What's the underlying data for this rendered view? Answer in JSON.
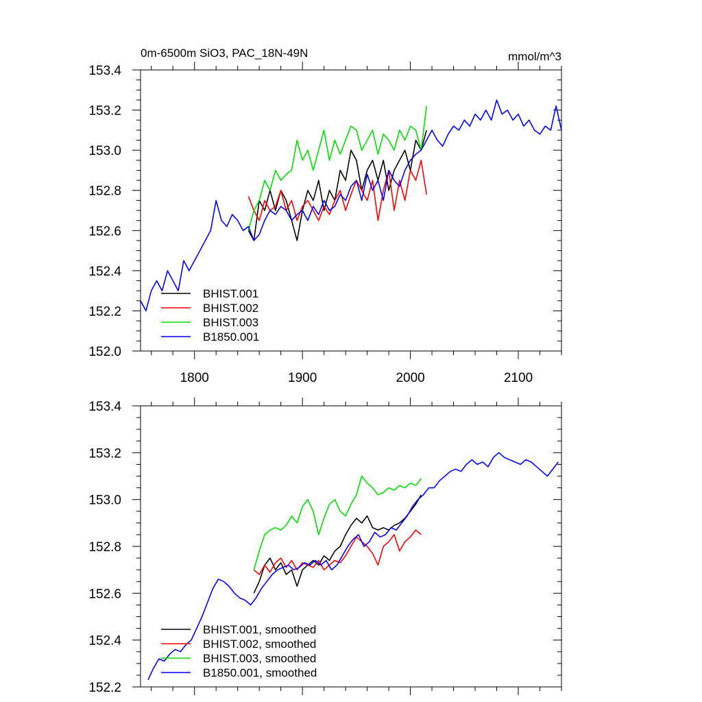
{
  "chart_data": [
    {
      "type": "line",
      "title_left": "0m-6500m SiO3, PAC_18N-49N",
      "title_right": "mmol/m^3",
      "xlim": [
        1750,
        2140
      ],
      "ylim": [
        152.0,
        153.4
      ],
      "x_ticks": [
        {
          "value": 1800,
          "label": "1800"
        },
        {
          "value": 1900,
          "label": "1900"
        },
        {
          "value": 2000,
          "label": "2000"
        },
        {
          "value": 2100,
          "label": "2100"
        }
      ],
      "y_ticks": [
        {
          "value": 152.0,
          "label": "152.0"
        },
        {
          "value": 152.2,
          "label": "152.2"
        },
        {
          "value": 152.4,
          "label": "152.4"
        },
        {
          "value": 152.6,
          "label": "152.6"
        },
        {
          "value": 152.8,
          "label": "152.8"
        },
        {
          "value": 153.0,
          "label": "153.0"
        },
        {
          "value": 153.2,
          "label": "153.2"
        },
        {
          "value": 153.4,
          "label": "153.4"
        }
      ],
      "legend_position": "bottom-left",
      "series": [
        {
          "name": "BHIST.001",
          "color": "#000000",
          "x": [
            1850,
            1855,
            1860,
            1865,
            1870,
            1875,
            1880,
            1885,
            1890,
            1895,
            1900,
            1905,
            1910,
            1915,
            1920,
            1925,
            1930,
            1935,
            1940,
            1945,
            1950,
            1955,
            1960,
            1965,
            1970,
            1975,
            1980,
            1985,
            1990,
            1995,
            2000,
            2005,
            2010,
            2015
          ],
          "y": [
            152.6,
            152.55,
            152.75,
            152.7,
            152.8,
            152.7,
            152.8,
            152.75,
            152.65,
            152.55,
            152.7,
            152.8,
            152.75,
            152.85,
            152.7,
            152.8,
            152.75,
            152.9,
            152.85,
            153.0,
            152.95,
            152.8,
            152.9,
            152.95,
            152.85,
            152.95,
            152.8,
            152.9,
            152.95,
            153.0,
            152.9,
            153.05,
            153.0,
            153.1
          ]
        },
        {
          "name": "BHIST.002",
          "color": "#ff0000",
          "x": [
            1850,
            1855,
            1860,
            1865,
            1870,
            1875,
            1880,
            1885,
            1890,
            1895,
            1900,
            1905,
            1910,
            1915,
            1920,
            1925,
            1930,
            1935,
            1940,
            1945,
            1950,
            1955,
            1960,
            1965,
            1970,
            1975,
            1980,
            1985,
            1990,
            1995,
            2000,
            2005,
            2010,
            2015
          ],
          "y": [
            152.77,
            152.7,
            152.65,
            152.75,
            152.7,
            152.72,
            152.8,
            152.7,
            152.75,
            152.65,
            152.72,
            152.75,
            152.7,
            152.65,
            152.72,
            152.68,
            152.75,
            152.8,
            152.7,
            152.78,
            152.85,
            152.8,
            152.75,
            152.85,
            152.65,
            152.8,
            152.9,
            152.7,
            152.85,
            152.75,
            152.9,
            152.85,
            152.95,
            152.78
          ]
        },
        {
          "name": "BHIST.003",
          "color": "#00dd00",
          "x": [
            1850,
            1855,
            1860,
            1865,
            1870,
            1875,
            1880,
            1885,
            1890,
            1895,
            1900,
            1905,
            1910,
            1915,
            1920,
            1925,
            1930,
            1935,
            1940,
            1945,
            1950,
            1955,
            1960,
            1965,
            1970,
            1975,
            1980,
            1985,
            1990,
            1995,
            2000,
            2005,
            2010,
            2015
          ],
          "y": [
            152.6,
            152.7,
            152.75,
            152.85,
            152.8,
            152.9,
            152.85,
            152.88,
            152.9,
            153.05,
            152.95,
            153.0,
            152.9,
            153.0,
            153.1,
            152.95,
            153.05,
            152.98,
            153.05,
            153.12,
            153.1,
            153.0,
            153.05,
            153.1,
            152.98,
            153.08,
            153.05,
            153.0,
            153.1,
            153.05,
            153.12,
            153.1,
            153.0,
            153.22
          ]
        },
        {
          "name": "B1850.001",
          "color": "#0000ff",
          "x": [
            1750,
            1755,
            1760,
            1765,
            1770,
            1775,
            1780,
            1785,
            1790,
            1795,
            1800,
            1805,
            1810,
            1815,
            1820,
            1825,
            1830,
            1835,
            1840,
            1845,
            1850,
            1855,
            1860,
            1865,
            1870,
            1875,
            1880,
            1885,
            1890,
            1895,
            1900,
            1905,
            1910,
            1915,
            1920,
            1925,
            1930,
            1935,
            1940,
            1945,
            1950,
            1955,
            1960,
            1965,
            1970,
            1975,
            1980,
            1985,
            1990,
            1995,
            2000,
            2005,
            2010,
            2015,
            2020,
            2025,
            2030,
            2035,
            2040,
            2045,
            2050,
            2055,
            2060,
            2065,
            2070,
            2075,
            2080,
            2085,
            2090,
            2095,
            2100,
            2105,
            2110,
            2115,
            2120,
            2125,
            2130,
            2135,
            2140
          ],
          "y": [
            152.25,
            152.2,
            152.3,
            152.35,
            152.3,
            152.4,
            152.35,
            152.3,
            152.45,
            152.4,
            152.45,
            152.5,
            152.55,
            152.6,
            152.75,
            152.65,
            152.62,
            152.68,
            152.65,
            152.6,
            152.62,
            152.55,
            152.58,
            152.65,
            152.7,
            152.68,
            152.72,
            152.7,
            152.65,
            152.68,
            152.7,
            152.65,
            152.72,
            152.68,
            152.75,
            152.7,
            152.72,
            152.78,
            152.75,
            152.82,
            152.85,
            152.75,
            152.88,
            152.8,
            152.85,
            152.75,
            152.9,
            152.85,
            152.82,
            152.9,
            152.95,
            152.98,
            153.0,
            153.05,
            153.1,
            153.05,
            153.02,
            153.08,
            153.12,
            153.1,
            153.15,
            153.12,
            153.18,
            153.15,
            153.2,
            153.15,
            153.25,
            153.18,
            153.2,
            153.15,
            153.18,
            153.12,
            153.15,
            153.1,
            153.08,
            153.12,
            153.1,
            153.22,
            153.1
          ]
        }
      ]
    },
    {
      "type": "line",
      "xlim": [
        1750,
        2140
      ],
      "ylim": [
        152.2,
        153.4
      ],
      "x_ticks": [
        {
          "value": 1800,
          "label": ""
        },
        {
          "value": 1900,
          "label": ""
        },
        {
          "value": 2000,
          "label": ""
        },
        {
          "value": 2100,
          "label": ""
        }
      ],
      "y_ticks": [
        {
          "value": 152.2,
          "label": "152.2"
        },
        {
          "value": 152.4,
          "label": "152.4"
        },
        {
          "value": 152.6,
          "label": "152.6"
        },
        {
          "value": 152.8,
          "label": "152.8"
        },
        {
          "value": 153.0,
          "label": "153.0"
        },
        {
          "value": 153.2,
          "label": "153.2"
        },
        {
          "value": 153.4,
          "label": "153.4"
        }
      ],
      "legend_position": "bottom-left",
      "series": [
        {
          "name": "BHIST.001, smoothed",
          "color": "#000000",
          "x": [
            1855,
            1860,
            1865,
            1870,
            1875,
            1880,
            1885,
            1890,
            1895,
            1900,
            1905,
            1910,
            1915,
            1920,
            1925,
            1930,
            1935,
            1940,
            1945,
            1950,
            1955,
            1960,
            1965,
            1970,
            1975,
            1980,
            1985,
            1990,
            1995,
            2000,
            2005,
            2010
          ],
          "y": [
            152.6,
            152.65,
            152.72,
            152.75,
            152.7,
            152.73,
            152.68,
            152.7,
            152.63,
            152.7,
            152.72,
            152.74,
            152.72,
            152.76,
            152.74,
            152.78,
            152.8,
            152.85,
            152.89,
            152.92,
            152.9,
            152.93,
            152.88,
            152.87,
            152.88,
            152.87,
            152.89,
            152.9,
            152.92,
            152.95,
            152.98,
            153.02
          ]
        },
        {
          "name": "BHIST.002, smoothed",
          "color": "#ff0000",
          "x": [
            1855,
            1860,
            1865,
            1870,
            1875,
            1880,
            1885,
            1890,
            1895,
            1900,
            1905,
            1910,
            1915,
            1920,
            1925,
            1930,
            1935,
            1940,
            1945,
            1950,
            1955,
            1960,
            1965,
            1970,
            1975,
            1980,
            1985,
            1990,
            1995,
            2000,
            2005,
            2010
          ],
          "y": [
            152.7,
            152.68,
            152.72,
            152.69,
            152.73,
            152.75,
            152.71,
            152.74,
            152.7,
            152.73,
            152.72,
            152.71,
            152.74,
            152.7,
            152.72,
            152.74,
            152.73,
            152.76,
            152.8,
            152.84,
            152.82,
            152.8,
            152.77,
            152.72,
            152.8,
            152.82,
            152.85,
            152.78,
            152.82,
            152.84,
            152.87,
            152.85
          ]
        },
        {
          "name": "BHIST.003, smoothed",
          "color": "#00dd00",
          "x": [
            1855,
            1860,
            1865,
            1870,
            1875,
            1880,
            1885,
            1890,
            1895,
            1900,
            1905,
            1910,
            1915,
            1920,
            1925,
            1930,
            1935,
            1940,
            1945,
            1950,
            1955,
            1960,
            1965,
            1970,
            1975,
            1980,
            1985,
            1990,
            1995,
            2000,
            2005,
            2010
          ],
          "y": [
            152.7,
            152.78,
            152.85,
            152.87,
            152.88,
            152.87,
            152.89,
            152.93,
            152.9,
            152.97,
            153.0,
            152.95,
            152.85,
            152.92,
            152.98,
            153.0,
            152.95,
            152.93,
            152.98,
            153.02,
            153.1,
            153.07,
            153.05,
            153.02,
            153.03,
            153.05,
            153.04,
            153.06,
            153.05,
            153.07,
            153.06,
            153.09
          ]
        },
        {
          "name": "B1850.001, smoothed",
          "color": "#0000ff",
          "x": [
            1757,
            1762,
            1767,
            1772,
            1777,
            1782,
            1787,
            1792,
            1797,
            1802,
            1807,
            1812,
            1817,
            1822,
            1827,
            1832,
            1837,
            1842,
            1847,
            1852,
            1857,
            1862,
            1867,
            1872,
            1877,
            1882,
            1887,
            1892,
            1897,
            1902,
            1907,
            1912,
            1917,
            1922,
            1927,
            1932,
            1937,
            1942,
            1947,
            1952,
            1957,
            1962,
            1967,
            1972,
            1977,
            1982,
            1987,
            1992,
            1997,
            2002,
            2007,
            2012,
            2017,
            2022,
            2027,
            2032,
            2037,
            2042,
            2047,
            2052,
            2057,
            2062,
            2067,
            2072,
            2077,
            2082,
            2087,
            2092,
            2097,
            2102,
            2107,
            2112,
            2117,
            2122,
            2127,
            2132,
            2137
          ],
          "y": [
            152.23,
            152.28,
            152.32,
            152.31,
            152.34,
            152.36,
            152.35,
            152.38,
            152.4,
            152.45,
            152.5,
            152.56,
            152.62,
            152.66,
            152.65,
            152.63,
            152.6,
            152.58,
            152.57,
            152.55,
            152.58,
            152.62,
            152.65,
            152.68,
            152.7,
            152.71,
            152.72,
            152.7,
            152.71,
            152.73,
            152.72,
            152.74,
            152.72,
            152.74,
            152.7,
            152.72,
            152.76,
            152.8,
            152.83,
            152.85,
            152.8,
            152.82,
            152.86,
            152.84,
            152.85,
            152.88,
            152.87,
            152.9,
            152.93,
            152.97,
            153.0,
            153.02,
            153.05,
            153.05,
            153.08,
            153.1,
            153.12,
            153.13,
            153.12,
            153.15,
            153.17,
            153.15,
            153.16,
            153.14,
            153.18,
            153.2,
            153.18,
            153.17,
            153.16,
            153.15,
            153.17,
            153.16,
            153.14,
            153.12,
            153.1,
            153.13,
            153.16
          ]
        }
      ]
    }
  ]
}
